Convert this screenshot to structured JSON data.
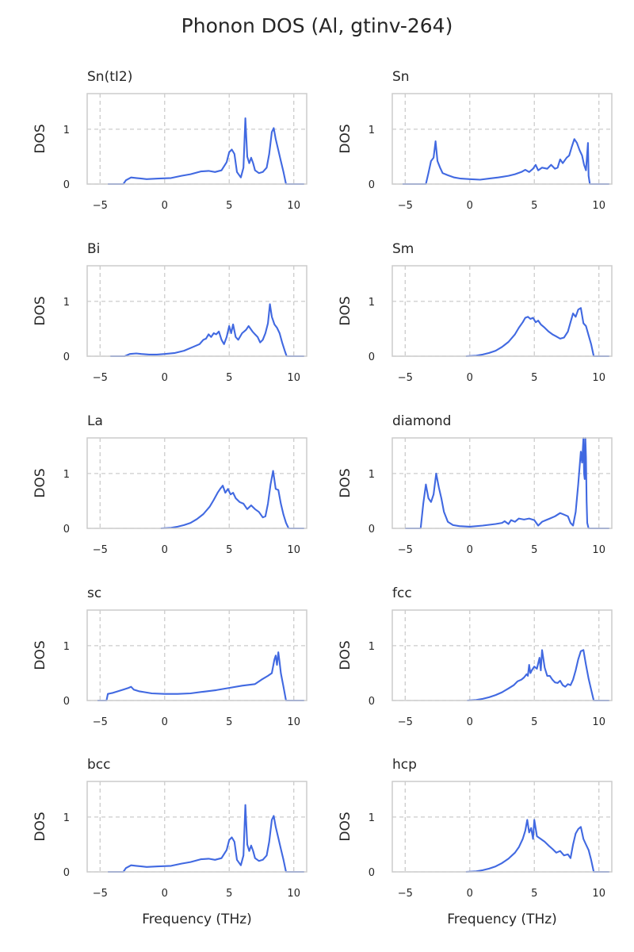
{
  "title": "Phonon DOS (Al, gtinv-264)",
  "chart_data": {
    "type": "line",
    "layout": "5x2 grid",
    "x_label": "Frequency (THz)",
    "y_label": "DOS",
    "xlim": [
      -6,
      11
    ],
    "ylim": [
      0,
      1.65
    ],
    "xticks": [
      -5,
      0,
      5,
      10
    ],
    "yticks": [
      0,
      1
    ],
    "grid": true,
    "grid_style": "dashed",
    "line_color": "#4169e1",
    "panels": [
      {
        "title": "Sn(tI2)",
        "x": [
          -4.4,
          -3.2,
          -3.0,
          -2.6,
          -2.2,
          -1.8,
          -1.4,
          -0.5,
          0.5,
          1.3,
          2.0,
          2.8,
          3.4,
          3.9,
          4.4,
          4.8,
          5.0,
          5.2,
          5.4,
          5.6,
          5.9,
          6.1,
          6.25,
          6.4,
          6.55,
          6.7,
          6.85,
          7.0,
          7.3,
          7.6,
          7.9,
          8.1,
          8.3,
          8.45,
          8.6,
          8.8,
          9.0,
          9.2,
          9.4,
          10.8
        ],
        "y": [
          0,
          0,
          0.07,
          0.12,
          0.11,
          0.1,
          0.09,
          0.1,
          0.11,
          0.15,
          0.18,
          0.23,
          0.24,
          0.22,
          0.25,
          0.4,
          0.58,
          0.63,
          0.55,
          0.22,
          0.12,
          0.3,
          1.2,
          0.5,
          0.38,
          0.48,
          0.38,
          0.25,
          0.2,
          0.22,
          0.3,
          0.55,
          0.95,
          1.02,
          0.82,
          0.62,
          0.42,
          0.22,
          0,
          0
        ]
      },
      {
        "title": "Sn",
        "x": [
          -5.2,
          -3.4,
          -3.2,
          -3.0,
          -2.8,
          -2.65,
          -2.5,
          -2.3,
          -2.1,
          -1.7,
          -1.2,
          -0.7,
          0,
          0.8,
          1.5,
          2.2,
          3.0,
          3.5,
          4.0,
          4.3,
          4.6,
          4.9,
          5.1,
          5.3,
          5.6,
          6.0,
          6.3,
          6.6,
          6.8,
          7.0,
          7.2,
          7.5,
          7.7,
          7.9,
          8.1,
          8.3,
          8.5,
          8.7,
          8.85,
          9.0,
          9.15,
          9.2,
          9.3,
          10.8
        ],
        "y": [
          0,
          0,
          0.2,
          0.42,
          0.48,
          0.78,
          0.42,
          0.3,
          0.2,
          0.16,
          0.12,
          0.1,
          0.09,
          0.08,
          0.1,
          0.12,
          0.15,
          0.18,
          0.22,
          0.26,
          0.22,
          0.28,
          0.35,
          0.25,
          0.3,
          0.28,
          0.35,
          0.28,
          0.3,
          0.45,
          0.38,
          0.48,
          0.52,
          0.68,
          0.82,
          0.75,
          0.62,
          0.52,
          0.35,
          0.25,
          0.75,
          0.15,
          0,
          0
        ]
      },
      {
        "title": "Bi",
        "x": [
          -4.2,
          -3.1,
          -2.7,
          -2.2,
          -1.8,
          -1.2,
          -0.6,
          0,
          0.8,
          1.5,
          2.2,
          2.7,
          3.0,
          3.2,
          3.4,
          3.6,
          3.8,
          4.0,
          4.2,
          4.4,
          4.6,
          4.8,
          5.0,
          5.15,
          5.3,
          5.5,
          5.7,
          6.0,
          6.3,
          6.5,
          6.8,
          7.0,
          7.2,
          7.4,
          7.6,
          7.8,
          8.0,
          8.15,
          8.3,
          8.5,
          8.7,
          8.9,
          9.1,
          9.3,
          9.45,
          10.8
        ],
        "y": [
          0,
          0,
          0.04,
          0.05,
          0.04,
          0.03,
          0.03,
          0.04,
          0.06,
          0.1,
          0.17,
          0.22,
          0.3,
          0.32,
          0.4,
          0.35,
          0.42,
          0.4,
          0.45,
          0.3,
          0.22,
          0.35,
          0.55,
          0.42,
          0.58,
          0.35,
          0.3,
          0.42,
          0.48,
          0.55,
          0.45,
          0.4,
          0.35,
          0.25,
          0.3,
          0.42,
          0.6,
          0.95,
          0.72,
          0.58,
          0.52,
          0.42,
          0.25,
          0.1,
          0,
          0
        ]
      },
      {
        "title": "Sm",
        "x": [
          -0.3,
          0.5,
          1.0,
          1.5,
          2.0,
          2.5,
          3.0,
          3.5,
          3.8,
          4.1,
          4.3,
          4.5,
          4.7,
          4.9,
          5.1,
          5.3,
          5.5,
          5.8,
          6.1,
          6.4,
          6.7,
          7.0,
          7.3,
          7.6,
          7.8,
          8.0,
          8.2,
          8.4,
          8.6,
          8.8,
          9.0,
          9.2,
          9.4,
          9.6,
          10.8
        ],
        "y": [
          0,
          0.01,
          0.03,
          0.06,
          0.1,
          0.17,
          0.26,
          0.4,
          0.52,
          0.62,
          0.7,
          0.72,
          0.68,
          0.7,
          0.62,
          0.65,
          0.58,
          0.52,
          0.45,
          0.4,
          0.36,
          0.32,
          0.34,
          0.45,
          0.62,
          0.78,
          0.72,
          0.85,
          0.88,
          0.6,
          0.55,
          0.38,
          0.22,
          0,
          0
        ]
      },
      {
        "title": "La",
        "x": [
          -0.3,
          0.5,
          1.0,
          1.5,
          2.0,
          2.5,
          3.0,
          3.5,
          3.8,
          4.1,
          4.3,
          4.5,
          4.7,
          4.9,
          5.1,
          5.3,
          5.5,
          5.8,
          6.1,
          6.4,
          6.7,
          7.0,
          7.3,
          7.6,
          7.8,
          8.0,
          8.2,
          8.4,
          8.6,
          8.8,
          9.0,
          9.2,
          9.4,
          9.6,
          10.8
        ],
        "y": [
          0,
          0.01,
          0.03,
          0.06,
          0.1,
          0.17,
          0.26,
          0.4,
          0.52,
          0.65,
          0.72,
          0.78,
          0.65,
          0.72,
          0.62,
          0.65,
          0.55,
          0.48,
          0.45,
          0.35,
          0.42,
          0.35,
          0.3,
          0.2,
          0.22,
          0.45,
          0.8,
          1.05,
          0.72,
          0.7,
          0.45,
          0.25,
          0.1,
          0,
          0
        ]
      },
      {
        "title": "diamond",
        "x": [
          -5.0,
          -3.8,
          -3.6,
          -3.4,
          -3.2,
          -3.0,
          -2.8,
          -2.6,
          -2.4,
          -2.2,
          -2.0,
          -1.7,
          -1.3,
          -0.8,
          0,
          1.0,
          2.0,
          2.5,
          2.7,
          3.0,
          3.2,
          3.5,
          3.8,
          4.2,
          4.6,
          5.0,
          5.3,
          5.6,
          5.9,
          6.2,
          6.6,
          7.0,
          7.3,
          7.6,
          7.8,
          8.0,
          8.2,
          8.4,
          8.6,
          8.7,
          8.8,
          8.85,
          8.9,
          8.95,
          9.0,
          9.05,
          9.1,
          9.2,
          10.8
        ],
        "y": [
          0,
          0,
          0.45,
          0.8,
          0.55,
          0.48,
          0.62,
          1.0,
          0.75,
          0.55,
          0.3,
          0.12,
          0.06,
          0.04,
          0.03,
          0.05,
          0.08,
          0.1,
          0.13,
          0.08,
          0.15,
          0.12,
          0.18,
          0.16,
          0.18,
          0.15,
          0.05,
          0.12,
          0.15,
          0.18,
          0.22,
          0.28,
          0.25,
          0.22,
          0.1,
          0.05,
          0.3,
          0.8,
          1.4,
          1.2,
          1.65,
          1.0,
          0.9,
          1.65,
          1.3,
          0.5,
          0.1,
          0,
          0
        ]
      },
      {
        "title": "sc",
        "x": [
          -5.2,
          -4.5,
          -4.4,
          -4.2,
          -4.0,
          -3.6,
          -3.2,
          -2.8,
          -2.6,
          -2.4,
          -2.0,
          -1.5,
          -1.0,
          0,
          1.0,
          2.0,
          3.0,
          4.0,
          5.0,
          6.0,
          7.0,
          7.5,
          8.0,
          8.3,
          8.5,
          8.6,
          8.7,
          8.8,
          8.9,
          9.0,
          9.2,
          9.4,
          10.8
        ],
        "y": [
          0,
          0,
          0.12,
          0.13,
          0.14,
          0.17,
          0.2,
          0.23,
          0.25,
          0.2,
          0.17,
          0.15,
          0.13,
          0.12,
          0.12,
          0.13,
          0.16,
          0.19,
          0.23,
          0.27,
          0.3,
          0.38,
          0.45,
          0.5,
          0.75,
          0.82,
          0.65,
          0.88,
          0.7,
          0.5,
          0.25,
          0,
          0
        ]
      },
      {
        "title": "fcc",
        "x": [
          -0.2,
          0.5,
          1.0,
          1.5,
          2.0,
          2.5,
          3.0,
          3.4,
          3.7,
          4.0,
          4.2,
          4.4,
          4.5,
          4.6,
          4.7,
          4.8,
          5.0,
          5.2,
          5.4,
          5.5,
          5.6,
          5.8,
          6.0,
          6.2,
          6.4,
          6.6,
          6.8,
          7.0,
          7.2,
          7.4,
          7.6,
          7.8,
          8.0,
          8.2,
          8.4,
          8.6,
          8.8,
          9.0,
          9.2,
          9.4,
          9.6,
          10.8
        ],
        "y": [
          0,
          0.01,
          0.03,
          0.06,
          0.1,
          0.15,
          0.22,
          0.28,
          0.35,
          0.38,
          0.42,
          0.48,
          0.45,
          0.65,
          0.5,
          0.55,
          0.62,
          0.58,
          0.78,
          0.55,
          0.92,
          0.6,
          0.45,
          0.45,
          0.38,
          0.33,
          0.32,
          0.36,
          0.28,
          0.25,
          0.3,
          0.28,
          0.38,
          0.55,
          0.75,
          0.9,
          0.92,
          0.65,
          0.4,
          0.2,
          0,
          0
        ]
      },
      {
        "title": "bcc",
        "x": [
          -4.4,
          -3.2,
          -3.0,
          -2.6,
          -2.2,
          -1.8,
          -1.4,
          -0.5,
          0.5,
          1.3,
          2.0,
          2.8,
          3.4,
          3.9,
          4.4,
          4.8,
          5.0,
          5.2,
          5.4,
          5.6,
          5.9,
          6.1,
          6.25,
          6.4,
          6.55,
          6.7,
          6.85,
          7.0,
          7.3,
          7.6,
          7.9,
          8.1,
          8.3,
          8.45,
          8.6,
          8.8,
          9.0,
          9.2,
          9.4,
          10.8
        ],
        "y": [
          0,
          0,
          0.07,
          0.12,
          0.11,
          0.1,
          0.09,
          0.1,
          0.11,
          0.15,
          0.18,
          0.23,
          0.24,
          0.22,
          0.25,
          0.4,
          0.58,
          0.63,
          0.55,
          0.22,
          0.12,
          0.3,
          1.22,
          0.5,
          0.38,
          0.48,
          0.38,
          0.25,
          0.2,
          0.22,
          0.3,
          0.55,
          0.95,
          1.02,
          0.82,
          0.62,
          0.42,
          0.22,
          0,
          0
        ]
      },
      {
        "title": "hcp",
        "x": [
          -0.3,
          0.5,
          1.0,
          1.5,
          2.0,
          2.5,
          3.0,
          3.5,
          3.8,
          4.1,
          4.3,
          4.45,
          4.6,
          4.75,
          4.9,
          5.0,
          5.2,
          5.5,
          5.8,
          6.1,
          6.4,
          6.7,
          7.0,
          7.3,
          7.6,
          7.8,
          8.0,
          8.2,
          8.4,
          8.6,
          8.8,
          9.0,
          9.2,
          9.4,
          9.6,
          10.8
        ],
        "y": [
          0,
          0.01,
          0.03,
          0.06,
          0.1,
          0.16,
          0.24,
          0.35,
          0.45,
          0.6,
          0.75,
          0.95,
          0.72,
          0.8,
          0.6,
          0.95,
          0.65,
          0.6,
          0.55,
          0.48,
          0.42,
          0.35,
          0.38,
          0.3,
          0.32,
          0.25,
          0.5,
          0.7,
          0.78,
          0.82,
          0.6,
          0.5,
          0.4,
          0.22,
          0,
          0
        ]
      }
    ]
  }
}
